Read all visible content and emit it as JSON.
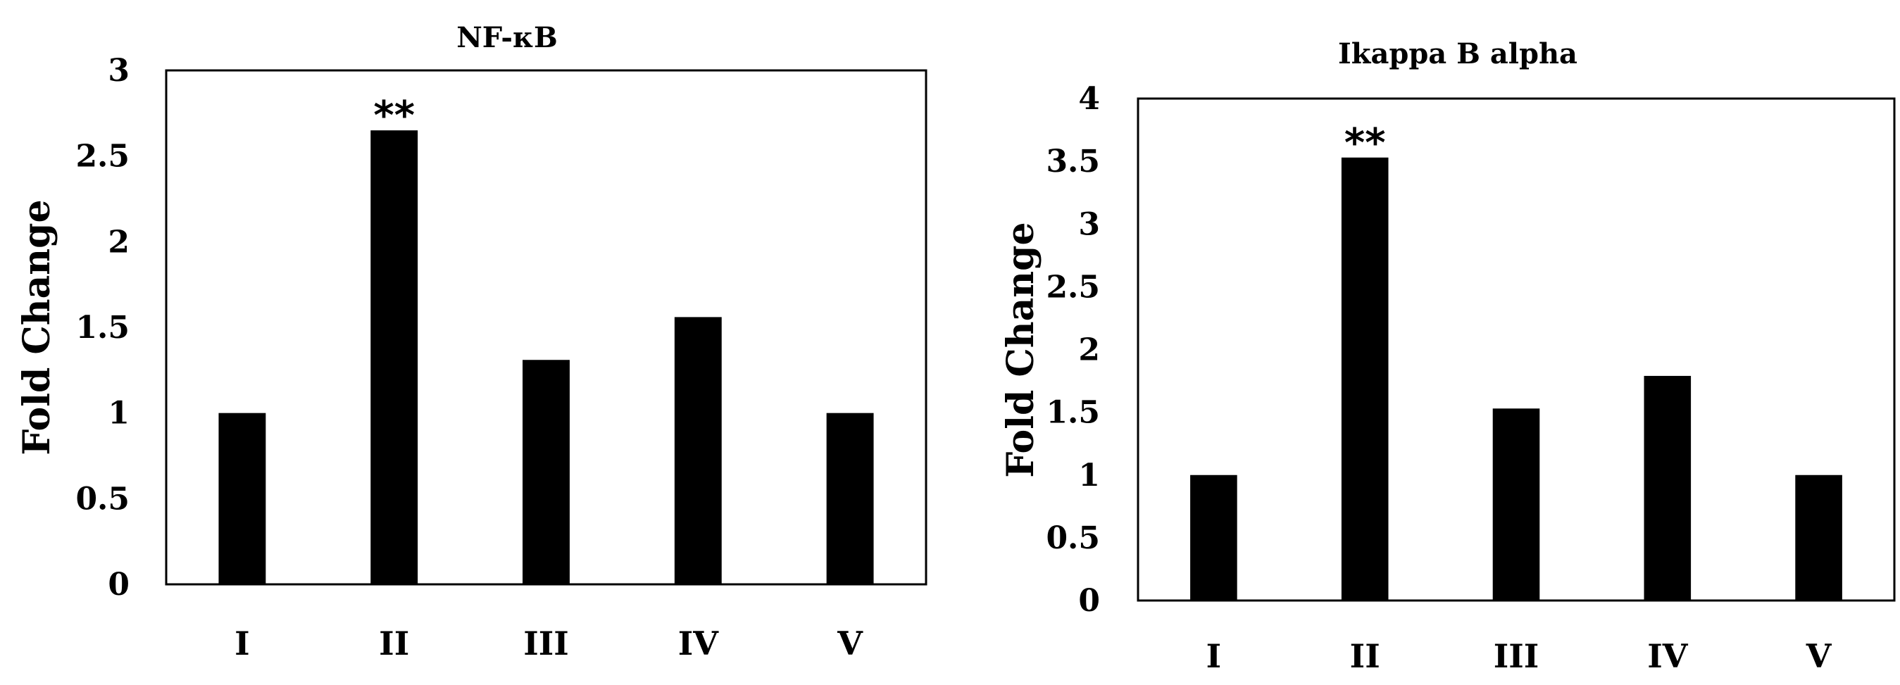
{
  "chart_data": [
    {
      "type": "bar",
      "title": "NF-κB",
      "xlabel": "",
      "ylabel": "Fold Change",
      "categories": [
        "I",
        "II",
        "III",
        "IV",
        "V"
      ],
      "values": [
        1.0,
        2.65,
        1.31,
        1.56,
        1.0
      ],
      "annotations": [
        {
          "category": "II",
          "text": "**"
        }
      ],
      "ylim": [
        0,
        3
      ],
      "yticks": [
        0,
        0.5,
        1,
        1.5,
        2,
        2.5,
        3
      ],
      "ytick_labels": [
        "0",
        "0.5",
        "1",
        "1.5",
        "2",
        "2.5",
        "3"
      ],
      "grid": false,
      "legend": "none",
      "bar_color": "#000000"
    },
    {
      "type": "bar",
      "title": "Ikappa B alpha",
      "xlabel": "",
      "ylabel": "Fold Change",
      "categories": [
        "I",
        "II",
        "III",
        "IV",
        "V"
      ],
      "values": [
        1.0,
        3.53,
        1.53,
        1.79,
        1.0
      ],
      "annotations": [
        {
          "category": "II",
          "text": "**"
        }
      ],
      "ylim": [
        0,
        4
      ],
      "yticks": [
        0,
        0.5,
        1,
        1.5,
        2,
        2.5,
        3,
        3.5,
        4
      ],
      "ytick_labels": [
        "0",
        "0.5",
        "1",
        "1.5",
        "2",
        "2.5",
        "3",
        "3.5",
        "4"
      ],
      "grid": false,
      "legend": "none",
      "bar_color": "#000000"
    }
  ]
}
